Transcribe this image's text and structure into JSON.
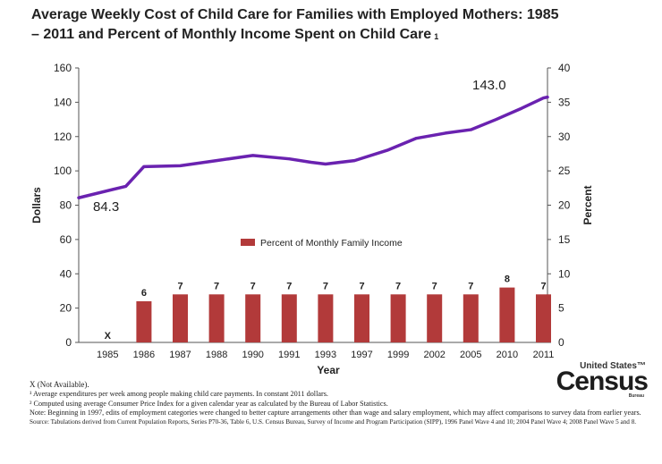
{
  "title": "Average Weekly Cost of Child Care for Families with Employed Mothers: 1985 – 2011 and Percent of Monthly Income Spent on Child Care",
  "title_footnote": "1",
  "chart_data": {
    "type": "bar+line",
    "categories": [
      "1985",
      "1986",
      "1987",
      "1988",
      "1990",
      "1991",
      "1993",
      "1997",
      "1999",
      "2002",
      "2005",
      "2010",
      "2011"
    ],
    "xlabel": "Year",
    "ylabel_left": "Dollars",
    "ylabel_right": "Percent",
    "ylim_left": [
      0,
      160
    ],
    "ylim_right": [
      0,
      40
    ],
    "yticks_left": [
      "0",
      "20",
      "40",
      "60",
      "80",
      "100",
      "120",
      "140",
      "160"
    ],
    "yticks_right": [
      "0",
      "5",
      "10",
      "15",
      "20",
      "25",
      "30",
      "35",
      "40"
    ],
    "line_series": {
      "name": "Average Weekly Cost (Dollars)",
      "color": "#6a22b0",
      "values": [
        84.3,
        91,
        102.5,
        103,
        106,
        109,
        107,
        105,
        104,
        106,
        112,
        119,
        122,
        124,
        130,
        136.5,
        142.5,
        143.0
      ],
      "x_positions": [
        0,
        0.5,
        1,
        2,
        3,
        4,
        5,
        5.6,
        6,
        6.8,
        7.7,
        8.5,
        9.3,
        10,
        10.7,
        11.4,
        12,
        12.8
      ],
      "labels": [
        {
          "text": "84.3",
          "value": 84.3
        },
        {
          "text": "143.0",
          "value": 143.0
        }
      ]
    },
    "bar_series": {
      "name": "Percent of Monthly Family Income",
      "color": "#b23a3a",
      "values": [
        null,
        6,
        7,
        7,
        7,
        7,
        7,
        7,
        7,
        7,
        7,
        8,
        7
      ],
      "labels": [
        "X",
        "6",
        "7",
        "7",
        "7",
        "7",
        "7",
        "7",
        "7",
        "7",
        "7",
        "8",
        "7"
      ]
    },
    "legend": "center"
  },
  "notes": {
    "not_available": "X (Not Available).",
    "note1": "¹ Average expenditures per week among people making child care payments. In constant 2011 dollars.",
    "note2": "² Computed using average Consumer Price Index for a given calendar year as calculated by the Bureau of Labor Statistics.",
    "note3": "Note: Beginning in 1997, edits of employment categories were changed to better capture arrangements other than wage and salary employment, which may affect comparisons to survey data from earlier years.",
    "source": "Source: Tabulations derived from Current Population Reports, Series P70-36, Table 6, U.S. Census Bureau, Survey of Income and Program Participation (SIPP), 1996 Panel Wave 4 and 10; 2004 Panel Wave 4; 2008 Panel Wave 5 and 8."
  },
  "logo": {
    "line1": "United States™",
    "line2": "Census",
    "line3": "Bureau"
  }
}
